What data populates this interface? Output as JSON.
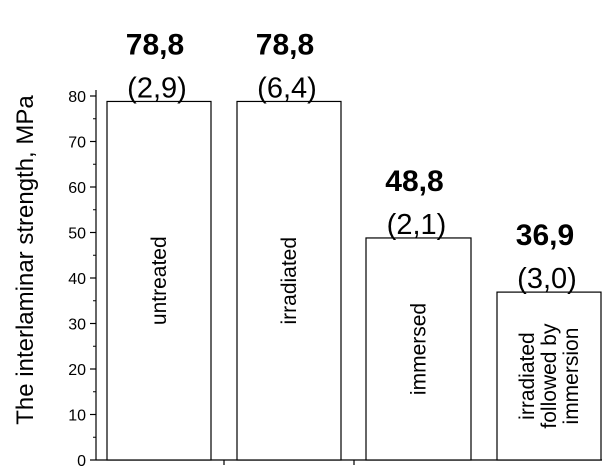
{
  "chart_data": {
    "type": "bar",
    "title": "",
    "xlabel": "",
    "ylabel": "The interlaminar strength, MPa",
    "ylim": [
      0,
      80
    ],
    "yticks": [
      "0",
      "10",
      "20",
      "30",
      "40",
      "50",
      "60",
      "70",
      "80"
    ],
    "grid": false,
    "legend": "none",
    "categories": [
      [
        "untreated"
      ],
      [
        "irradiated"
      ],
      [
        "immersed"
      ],
      [
        "irradiated",
        "followed by",
        "immersion"
      ]
    ],
    "values": [
      78.8,
      78.8,
      48.8,
      36.9
    ],
    "value_labels": [
      "78,8",
      "78,8",
      "48,8",
      "36,9"
    ],
    "deviation_labels": [
      "(2,9)",
      "(6,4)",
      "(2,1)",
      "(3,0)"
    ],
    "colors": {
      "bar_fill": "#ffffff",
      "bar_stroke": "#000000",
      "axis": "#000000"
    }
  }
}
